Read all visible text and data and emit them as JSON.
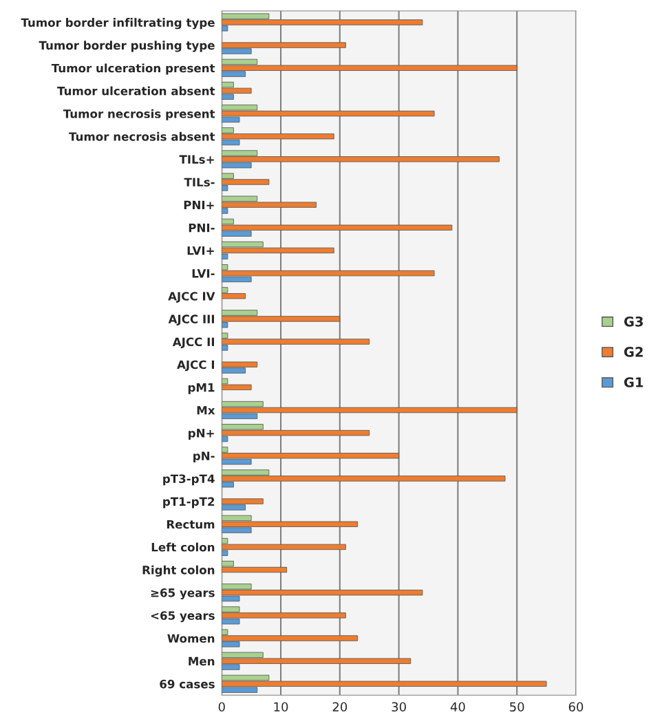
{
  "chart_data": {
    "type": "bar",
    "orientation": "horizontal",
    "categories": [
      "Tumor border infiltrating type",
      "Tumor border pushing type",
      "Tumor ulceration present",
      "Tumor ulceration absent",
      "Tumor necrosis present",
      "Tumor necrosis absent",
      "TILs+",
      "TILs-",
      "PNI+",
      "PNI-",
      "LVI+",
      "LVI-",
      "AJCC IV",
      "AJCC III",
      "AJCC II",
      "AJCC I",
      "pM1",
      "Mx",
      "pN+",
      "pN-",
      "pT3-pT4",
      "pT1-pT2",
      "Rectum",
      "Left colon",
      "Right colon",
      "≥65 years",
      "<65 years",
      "Women",
      "Men",
      "69 cases"
    ],
    "series": [
      {
        "name": "G3",
        "color": "#a9d18e",
        "values": [
          8,
          0,
          6,
          2,
          6,
          2,
          6,
          2,
          6,
          2,
          7,
          1,
          1,
          6,
          1,
          0,
          1,
          7,
          7,
          1,
          8,
          0,
          5,
          1,
          2,
          5,
          3,
          1,
          7,
          8
        ]
      },
      {
        "name": "G2",
        "color": "#ed7d31",
        "values": [
          34,
          21,
          50,
          5,
          36,
          19,
          47,
          8,
          16,
          39,
          19,
          36,
          4,
          20,
          25,
          6,
          5,
          50,
          25,
          30,
          48,
          7,
          23,
          21,
          11,
          34,
          21,
          23,
          32,
          55
        ]
      },
      {
        "name": "G1",
        "color": "#5b9bd5",
        "values": [
          1,
          5,
          4,
          2,
          3,
          3,
          5,
          1,
          1,
          5,
          1,
          5,
          0,
          1,
          1,
          4,
          0,
          6,
          1,
          5,
          2,
          4,
          5,
          1,
          0,
          3,
          3,
          3,
          3,
          6
        ]
      }
    ],
    "xlim": [
      0,
      60
    ],
    "xticks": [
      0,
      10,
      20,
      30,
      40,
      50,
      60
    ],
    "grid": "x",
    "legend": "right"
  }
}
